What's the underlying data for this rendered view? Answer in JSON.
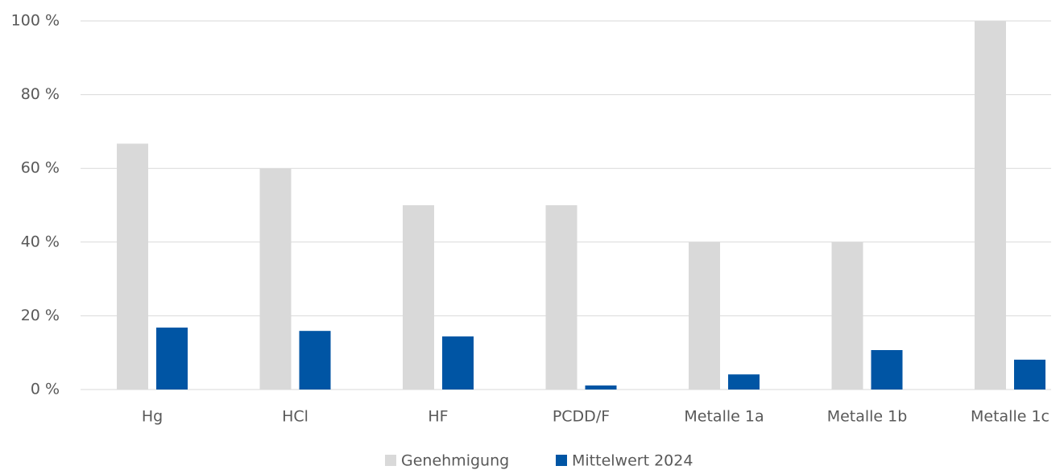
{
  "chart_data": {
    "type": "bar",
    "categories": [
      "Hg",
      "HCl",
      "HF",
      "PCDD/F",
      "Metalle 1a",
      "Metalle 1b",
      "Metalle 1c"
    ],
    "series": [
      {
        "name": "Genehmigung",
        "color": "#d9d9d9",
        "values": [
          66.7,
          60,
          50,
          50,
          40,
          40,
          100
        ]
      },
      {
        "name": "Mittelwert 2024",
        "color": "#0055a4",
        "values": [
          16.8,
          15.9,
          14.4,
          1.1,
          4.1,
          10.7,
          8.1
        ]
      }
    ],
    "ylim": [
      0,
      100
    ],
    "yticks": [
      {
        "value": 0,
        "label": "0 %"
      },
      {
        "value": 20,
        "label": "20 %"
      },
      {
        "value": 40,
        "label": "40 %"
      },
      {
        "value": 60,
        "label": "60 %"
      },
      {
        "value": 80,
        "label": "80 %"
      },
      {
        "value": 100,
        "label": "100 %"
      }
    ],
    "grid": true,
    "legend": "bottom"
  }
}
